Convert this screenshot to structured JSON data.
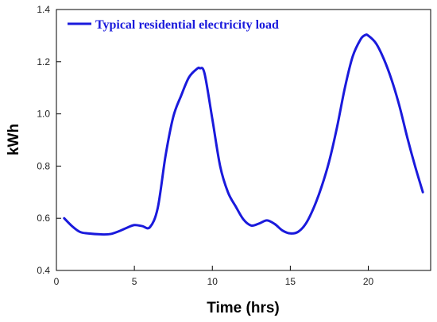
{
  "chart_data": {
    "type": "line",
    "title": "",
    "xlabel": "Time (hrs)",
    "ylabel": "kWh",
    "xlim": [
      0,
      24
    ],
    "ylim": [
      0.4,
      1.4
    ],
    "xticks": [
      0,
      5,
      10,
      15,
      20
    ],
    "yticks": [
      0.4,
      0.6,
      0.8,
      1.0,
      1.2,
      1.4
    ],
    "xtick_labels": [
      "0",
      "5",
      "10",
      "15",
      "20"
    ],
    "ytick_labels": [
      "0.4",
      "0.6",
      "0.8",
      "1.0",
      "1.2",
      "1.4"
    ],
    "grid": false,
    "legend_position": "top-left",
    "series": [
      {
        "name": "Typical residential electricity load",
        "color": "#1a1adc",
        "x": [
          0.5,
          1.0,
          1.5,
          2.0,
          3.0,
          3.5,
          4.0,
          4.5,
          5.0,
          5.5,
          6.0,
          6.5,
          7.0,
          7.5,
          8.0,
          8.5,
          9.0,
          9.2,
          9.5,
          10.0,
          10.5,
          11.0,
          11.5,
          12.0,
          12.5,
          13.0,
          13.5,
          14.0,
          14.5,
          15.0,
          15.5,
          16.0,
          16.5,
          17.0,
          17.5,
          18.0,
          18.5,
          19.0,
          19.5,
          19.8,
          20.0,
          20.5,
          21.0,
          21.5,
          22.0,
          22.5,
          23.0,
          23.5
        ],
        "y": [
          0.6,
          0.57,
          0.548,
          0.542,
          0.538,
          0.54,
          0.55,
          0.563,
          0.574,
          0.57,
          0.566,
          0.64,
          0.84,
          0.99,
          1.07,
          1.14,
          1.172,
          1.175,
          1.155,
          0.98,
          0.8,
          0.7,
          0.645,
          0.595,
          0.572,
          0.58,
          0.592,
          0.578,
          0.553,
          0.542,
          0.548,
          0.58,
          0.64,
          0.72,
          0.82,
          0.95,
          1.1,
          1.22,
          1.285,
          1.302,
          1.3,
          1.27,
          1.21,
          1.13,
          1.03,
          0.91,
          0.8,
          0.7
        ]
      }
    ]
  }
}
